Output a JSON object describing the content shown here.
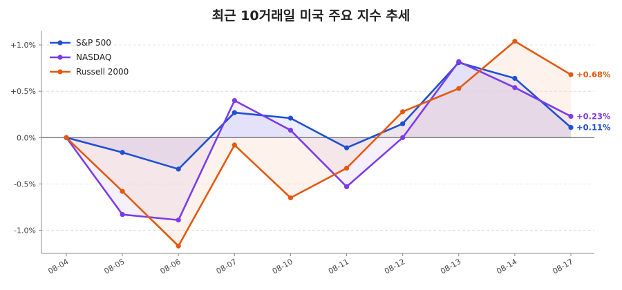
{
  "chart_data": {
    "type": "line",
    "title": "최근 10거래일 미국 주요 지수 추세",
    "xlabel": "",
    "ylabel": "",
    "categories": [
      "08-04",
      "08-05",
      "08-06",
      "08-07",
      "08-10",
      "08-11",
      "08-12",
      "08-13",
      "08-14",
      "08-17"
    ],
    "ylim": [
      -1.25,
      1.15
    ],
    "yticks": [
      -1.0,
      -0.5,
      0.0,
      0.5,
      1.0
    ],
    "ytick_labels": [
      "-1.0%",
      "-0.5%",
      "0.0%",
      "+0.5%",
      "+1.0%"
    ],
    "grid": "horizontal-dashed",
    "legend": "top-left",
    "series": [
      {
        "name": "S&P 500",
        "color": "#1f4fd6",
        "fill": "#6a7cf0",
        "values": [
          0.0,
          -0.16,
          -0.34,
          0.27,
          0.21,
          -0.11,
          0.15,
          0.81,
          0.64,
          0.11
        ],
        "end_label": "+0.11%"
      },
      {
        "name": "NASDAQ",
        "color": "#7b3ce8",
        "fill": "#b48ee8",
        "values": [
          0.0,
          -0.83,
          -0.89,
          0.4,
          0.08,
          -0.53,
          0.0,
          0.82,
          0.54,
          0.23
        ],
        "end_label": "+0.23%"
      },
      {
        "name": "Russell 2000",
        "color": "#e3590f",
        "fill": "#f4a66a",
        "values": [
          0.0,
          -0.58,
          -1.17,
          -0.08,
          -0.65,
          -0.33,
          0.28,
          0.53,
          1.04,
          0.68
        ],
        "end_label": "+0.68%"
      }
    ]
  }
}
